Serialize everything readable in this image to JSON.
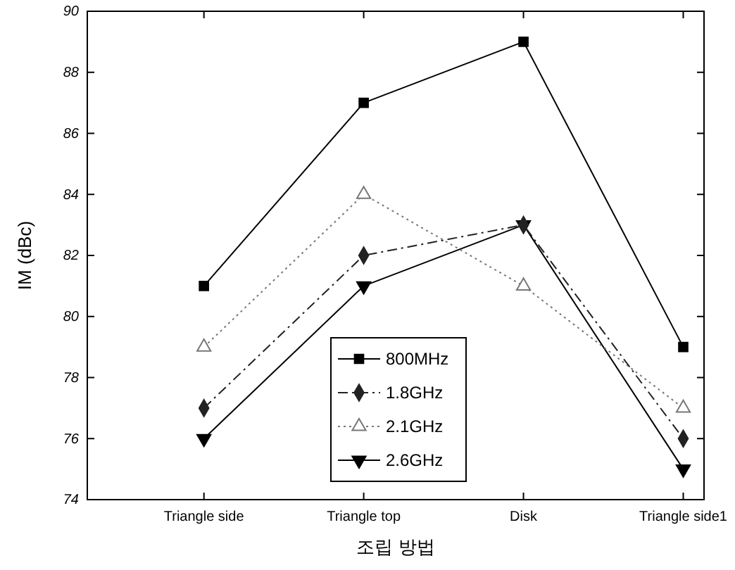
{
  "chart_data": {
    "type": "line",
    "xlabel": "조립 방법",
    "ylabel": "IM (dBc)",
    "categories": [
      "Triangle side",
      "Triangle top",
      "Disk",
      "Triangle side1"
    ],
    "series": [
      {
        "name": "800MHz",
        "color": "#000000",
        "values": [
          81,
          87,
          89,
          79
        ],
        "marker": "square",
        "line_style": "solid"
      },
      {
        "name": "1.8GHz",
        "color": "#222222",
        "values": [
          77,
          82,
          83,
          76
        ],
        "marker": "diamond",
        "line_style": "dashdot"
      },
      {
        "name": "2.1GHz",
        "color": "#777777",
        "values": [
          79,
          84,
          81,
          77
        ],
        "marker": "triangle",
        "line_style": "dotted"
      },
      {
        "name": "2.6GHz",
        "color": "#000000",
        "values": [
          76,
          81,
          83,
          75
        ],
        "marker": "triangle-down",
        "line_style": "solid"
      }
    ],
    "ylim": [
      74,
      90
    ],
    "yticks": [
      74,
      76,
      78,
      80,
      82,
      84,
      86,
      88,
      90
    ],
    "legend": "bottom",
    "grid": false
  }
}
